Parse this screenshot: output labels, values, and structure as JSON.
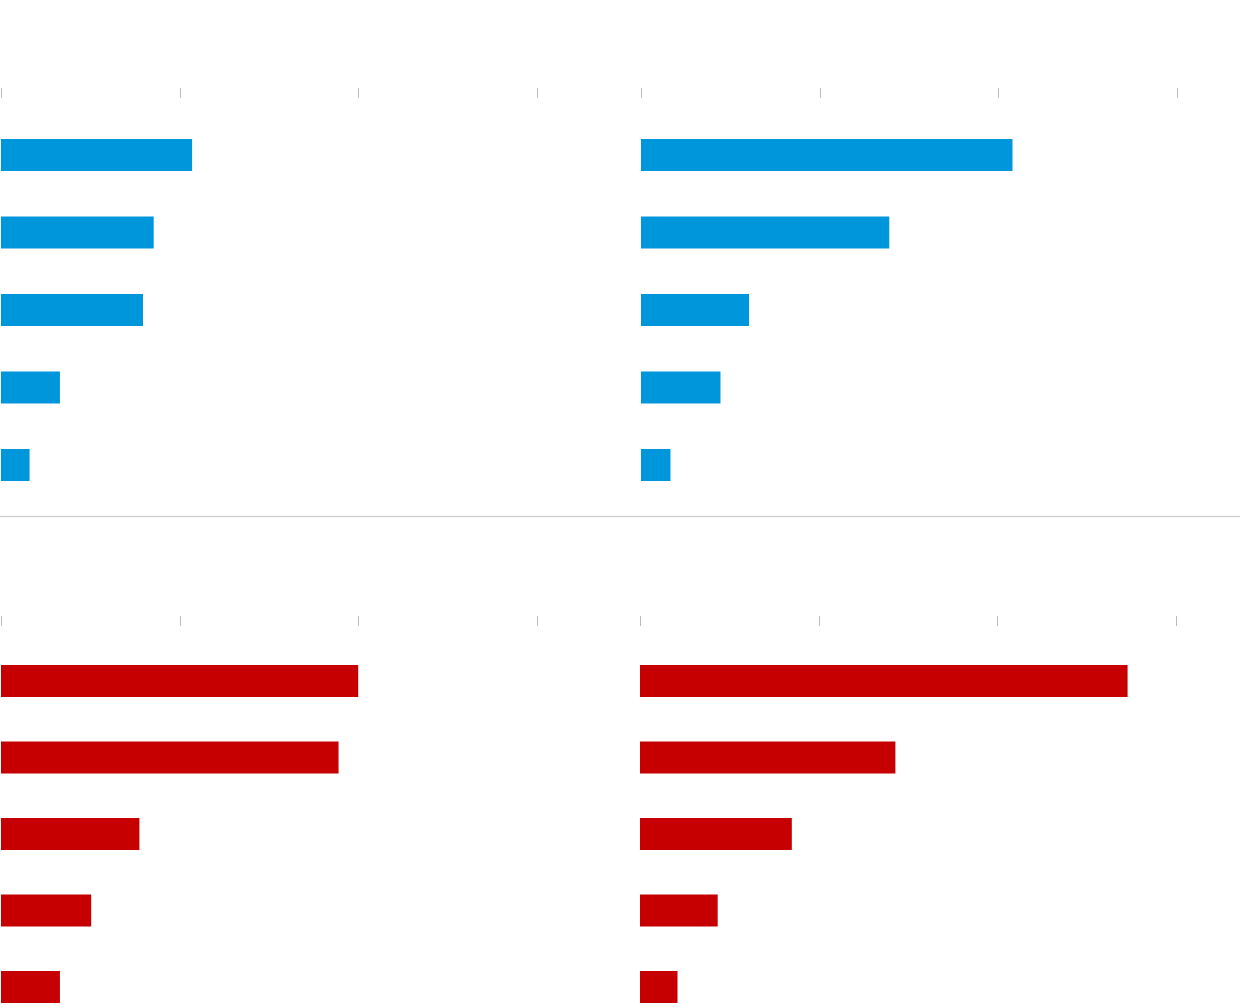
{
  "colors": {
    "blue": "#0096db",
    "red": "#c60000",
    "tick": "#bbbbbb",
    "separator": "#cccccc"
  },
  "chart_data": [
    {
      "type": "bar",
      "orientation": "horizontal",
      "position": "top-left",
      "color": "blue",
      "xlim": [
        0,
        60
      ],
      "ticks": [
        0,
        20,
        40,
        60
      ],
      "categories": [
        "",
        "",
        "",
        "",
        ""
      ],
      "values": [
        21.4,
        17.1,
        15.9,
        6.6,
        3.2
      ]
    },
    {
      "type": "bar",
      "orientation": "horizontal",
      "position": "top-right",
      "color": "blue",
      "xlim": [
        0,
        60
      ],
      "ticks": [
        0,
        20,
        40,
        60
      ],
      "categories": [
        "",
        "",
        "",
        "",
        ""
      ],
      "values": [
        41.6,
        27.8,
        12.1,
        8.9,
        3.3
      ]
    },
    {
      "type": "bar",
      "orientation": "horizontal",
      "position": "bottom-left",
      "color": "red",
      "xlim": [
        0,
        60
      ],
      "ticks": [
        0,
        20,
        40,
        60
      ],
      "categories": [
        "",
        "",
        "",
        "",
        ""
      ],
      "values": [
        40.0,
        37.8,
        15.5,
        10.1,
        6.6
      ]
    },
    {
      "type": "bar",
      "orientation": "horizontal",
      "position": "bottom-right",
      "color": "red",
      "xlim": [
        0,
        60
      ],
      "ticks": [
        0,
        20,
        40,
        60
      ],
      "categories": [
        "",
        "",
        "",
        "",
        ""
      ],
      "values": [
        54.6,
        28.6,
        17.0,
        8.7,
        4.2
      ]
    }
  ]
}
